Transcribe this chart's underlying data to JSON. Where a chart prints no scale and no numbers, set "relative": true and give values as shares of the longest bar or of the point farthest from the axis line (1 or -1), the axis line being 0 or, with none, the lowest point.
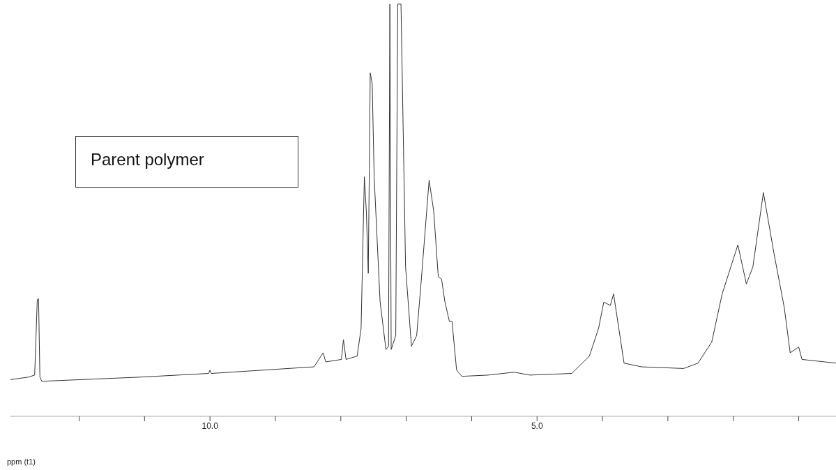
{
  "chart_data": {
    "type": "line",
    "relative": true,
    "xlabel": "ppm (t1)",
    "annotations": [
      "Parent polymer"
    ],
    "color": "#333333",
    "marker": "none",
    "xlim": [
      13.05,
      0.43
    ],
    "xticks": [
      {
        "value": 12,
        "label": null
      },
      {
        "value": 11,
        "label": null
      },
      {
        "value": 10,
        "label": "10.0"
      },
      {
        "value": 9,
        "label": null
      },
      {
        "value": 8,
        "label": null
      },
      {
        "value": 7,
        "label": null
      },
      {
        "value": 6,
        "label": null
      },
      {
        "value": 5,
        "label": "5.0"
      },
      {
        "value": 4,
        "label": null
      },
      {
        "value": 3,
        "label": null
      },
      {
        "value": 2,
        "label": null
      },
      {
        "value": 1,
        "label": null
      }
    ],
    "x": [
      13.05,
      12.78,
      12.68,
      12.64,
      12.62,
      12.6,
      12.57,
      11.08,
      10.02,
      10.0,
      9.98,
      8.41,
      8.27,
      8.23,
      7.99,
      7.96,
      7.92,
      7.75,
      7.69,
      7.64,
      7.61,
      7.58,
      7.55,
      7.52,
      7.49,
      7.4,
      7.31,
      7.27,
      7.25,
      7.23,
      7.16,
      7.13,
      7.08,
      7.01,
      6.92,
      6.84,
      6.77,
      6.65,
      6.58,
      6.51,
      6.46,
      6.41,
      6.34,
      6.3,
      6.23,
      6.15,
      5.75,
      5.35,
      5.11,
      4.47,
      4.2,
      4.06,
      3.98,
      3.88,
      3.83,
      3.79,
      3.67,
      3.4,
      2.76,
      2.54,
      2.33,
      2.17,
      1.93,
      1.8,
      1.7,
      1.54,
      1.38,
      1.22,
      1.13,
      1.0,
      0.95,
      0.43
    ],
    "values": [
      0.089,
      0.095,
      0.1,
      0.283,
      0.285,
      0.095,
      0.085,
      0.095,
      0.104,
      0.112,
      0.104,
      0.12,
      0.154,
      0.132,
      0.138,
      0.186,
      0.138,
      0.146,
      0.213,
      0.581,
      0.498,
      0.347,
      0.833,
      0.807,
      0.581,
      0.279,
      0.162,
      0.17,
      1,
      0.162,
      0.196,
      1,
      1,
      0.363,
      0.17,
      0.196,
      0.33,
      0.573,
      0.498,
      0.339,
      0.333,
      0.279,
      0.23,
      0.23,
      0.112,
      0.097,
      0.1,
      0.107,
      0.1,
      0.104,
      0.146,
      0.213,
      0.277,
      0.269,
      0.297,
      0.255,
      0.129,
      0.12,
      0.116,
      0.129,
      0.18,
      0.297,
      0.416,
      0.321,
      0.363,
      0.543,
      0.397,
      0.263,
      0.154,
      0.168,
      0.138,
      0.129
    ]
  }
}
